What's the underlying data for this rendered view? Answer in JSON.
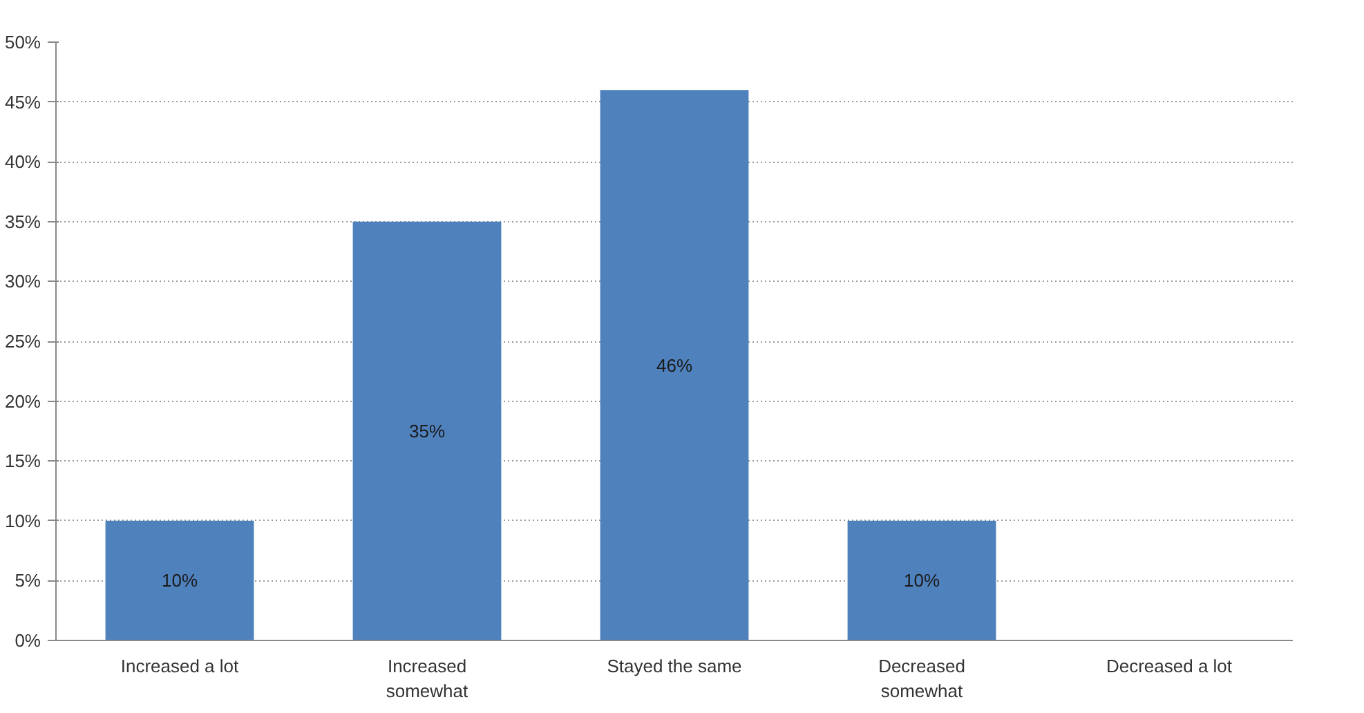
{
  "chart_data": {
    "type": "bar",
    "categories": [
      "Increased a lot",
      "Increased somewhat",
      "Stayed the same",
      "Decreased somewhat",
      "Decreased a lot"
    ],
    "values": [
      10,
      35,
      46,
      10,
      0
    ],
    "value_labels": [
      "10%",
      "35%",
      "46%",
      "10%",
      null
    ],
    "color": "#4f81bd",
    "ylim": [
      0,
      50
    ],
    "yticks": [
      {
        "value": 0,
        "label": "0%"
      },
      {
        "value": 5,
        "label": "5%"
      },
      {
        "value": 10,
        "label": "10%"
      },
      {
        "value": 15,
        "label": "15%"
      },
      {
        "value": 20,
        "label": "20%"
      },
      {
        "value": 25,
        "label": "25%"
      },
      {
        "value": 30,
        "label": "30%"
      },
      {
        "value": 35,
        "label": "35%"
      },
      {
        "value": 40,
        "label": "40%"
      },
      {
        "value": 45,
        "label": "45%"
      },
      {
        "value": 50,
        "label": "50%"
      }
    ],
    "grid": "y"
  }
}
